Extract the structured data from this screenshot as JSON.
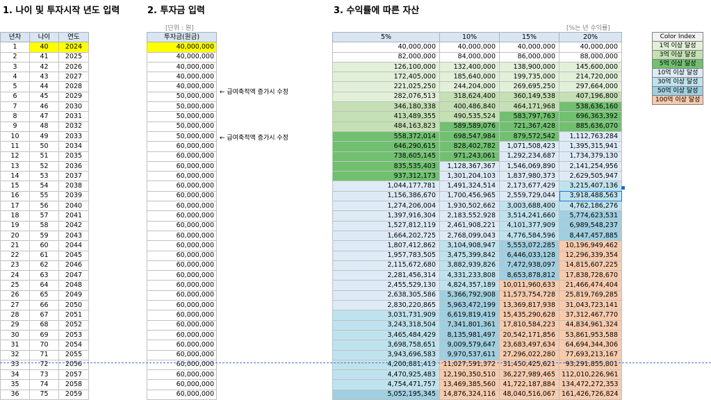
{
  "headings": {
    "section1": "1. 나이 및 투자시작 년도 입력",
    "section2": "2. 투자금 입력",
    "section3": "3. 수익률에 따른 자산"
  },
  "unit_note": "[단위 : 원]",
  "rate_note": "[%는 년 수익률]",
  "table1": {
    "headers": [
      "년차",
      "나이",
      "연도"
    ],
    "start_age": "40",
    "start_year": "2024"
  },
  "table2": {
    "header": "투자금(원금)"
  },
  "notes": [
    "← 급여축적액 증가시 수정",
    "← 급여축적액 증가시 수정"
  ],
  "table3": {
    "headers": [
      "5%",
      "10%",
      "15%",
      "20%"
    ]
  },
  "legend": {
    "title": "Color Index",
    "items": [
      "1억 이상 달성",
      "3억 이상 달성",
      "5억 이상 달성",
      "10억 이상 달성",
      "30억 이상 달성",
      "50억 이상 달성",
      "100억 이상 달성"
    ],
    "colors": [
      "#e2f0d9",
      "#c5e0b4",
      "#70c070",
      "#deebf7",
      "#bfe3ee",
      "#9fcfe0",
      "#f8cbad"
    ]
  },
  "rows": [
    [
      "1",
      "40",
      "2024",
      "40,000,000",
      "40,000,000",
      "40,000,000",
      "40,000,000",
      "40,000,000"
    ],
    [
      "2",
      "41",
      "2025",
      "40,000,000",
      "82,000,000",
      "84,000,000",
      "86,000,000",
      "88,000,000"
    ],
    [
      "3",
      "42",
      "2026",
      "40,000,000",
      "126,100,000",
      "132,400,000",
      "138,900,000",
      "145,600,000"
    ],
    [
      "4",
      "43",
      "2027",
      "40,000,000",
      "172,405,000",
      "185,640,000",
      "199,735,000",
      "214,720,000"
    ],
    [
      "5",
      "44",
      "2028",
      "40,000,000",
      "221,025,250",
      "244,204,000",
      "269,695,250",
      "297,664,000"
    ],
    [
      "6",
      "45",
      "2029",
      "50,000,000",
      "282,076,513",
      "318,624,400",
      "360,149,538",
      "407,196,800"
    ],
    [
      "7",
      "46",
      "2030",
      "50,000,000",
      "346,180,338",
      "400,486,840",
      "464,171,968",
      "538,636,160"
    ],
    [
      "8",
      "47",
      "2031",
      "50,000,000",
      "413,489,355",
      "490,535,524",
      "583,797,763",
      "696,363,392"
    ],
    [
      "9",
      "48",
      "2032",
      "50,000,000",
      "484,163,823",
      "589,589,076",
      "721,367,428",
      "885,636,070"
    ],
    [
      "10",
      "49",
      "2033",
      "50,000,000",
      "558,372,014",
      "698,547,984",
      "879,572,542",
      "1,112,763,284"
    ],
    [
      "11",
      "50",
      "2034",
      "60,000,000",
      "646,290,615",
      "828,402,782",
      "1,071,508,423",
      "1,395,315,941"
    ],
    [
      "12",
      "51",
      "2035",
      "60,000,000",
      "738,605,145",
      "971,243,061",
      "1,292,234,687",
      "1,734,379,130"
    ],
    [
      "13",
      "52",
      "2036",
      "60,000,000",
      "835,535,403",
      "1,128,367,367",
      "1,546,069,890",
      "2,141,254,956"
    ],
    [
      "14",
      "53",
      "2037",
      "60,000,000",
      "937,312,173",
      "1,301,204,103",
      "1,837,980,373",
      "2,629,505,947"
    ],
    [
      "15",
      "54",
      "2038",
      "60,000,000",
      "1,044,177,781",
      "1,491,324,514",
      "2,173,677,429",
      "3,215,407,136"
    ],
    [
      "16",
      "55",
      "2039",
      "60,000,000",
      "1,156,386,670",
      "1,700,456,965",
      "2,559,729,044",
      "3,918,488,563"
    ],
    [
      "17",
      "56",
      "2040",
      "60,000,000",
      "1,274,206,004",
      "1,930,502,662",
      "3,003,688,400",
      "4,762,186,276"
    ],
    [
      "18",
      "57",
      "2041",
      "60,000,000",
      "1,397,916,304",
      "2,183,552,928",
      "3,514,241,660",
      "5,774,623,531"
    ],
    [
      "19",
      "58",
      "2042",
      "60,000,000",
      "1,527,812,119",
      "2,461,908,221",
      "4,101,377,909",
      "6,989,548,237"
    ],
    [
      "20",
      "59",
      "2043",
      "60,000,000",
      "1,664,202,725",
      "2,768,099,043",
      "4,776,584,596",
      "8,447,457,885"
    ],
    [
      "21",
      "60",
      "2044",
      "60,000,000",
      "1,807,412,862",
      "3,104,908,947",
      "5,553,072,285",
      "10,196,949,462"
    ],
    [
      "22",
      "61",
      "2045",
      "60,000,000",
      "1,957,783,505",
      "3,475,399,842",
      "6,446,033,128",
      "12,296,339,354"
    ],
    [
      "23",
      "62",
      "2046",
      "60,000,000",
      "2,115,672,680",
      "3,882,939,826",
      "7,472,938,097",
      "14,815,607,225"
    ],
    [
      "24",
      "63",
      "2047",
      "60,000,000",
      "2,281,456,314",
      "4,331,233,808",
      "8,653,878,812",
      "17,838,728,670"
    ],
    [
      "25",
      "64",
      "2048",
      "60,000,000",
      "2,455,529,130",
      "4,824,357,189",
      "10,011,960,633",
      "21,466,474,404"
    ],
    [
      "26",
      "65",
      "2049",
      "60,000,000",
      "2,638,305,586",
      "5,366,792,908",
      "11,573,754,728",
      "25,819,769,285"
    ],
    [
      "27",
      "66",
      "2050",
      "60,000,000",
      "2,830,220,865",
      "5,963,472,199",
      "13,369,817,938",
      "31,043,723,141"
    ],
    [
      "28",
      "67",
      "2051",
      "60,000,000",
      "3,031,731,909",
      "6,619,819,419",
      "15,435,290,628",
      "37,312,467,770"
    ],
    [
      "29",
      "68",
      "2052",
      "60,000,000",
      "3,243,318,504",
      "7,341,801,361",
      "17,810,584,223",
      "44,834,961,324"
    ],
    [
      "30",
      "69",
      "2053",
      "60,000,000",
      "3,465,484,429",
      "8,135,981,497",
      "20,542,171,856",
      "53,861,953,588"
    ],
    [
      "31",
      "70",
      "2054",
      "60,000,000",
      "3,698,758,651",
      "9,009,579,647",
      "23,683,497,634",
      "64,694,344,306"
    ],
    [
      "32",
      "71",
      "2055",
      "60,000,000",
      "3,943,696,583",
      "9,970,537,611",
      "27,296,022,280",
      "77,693,213,167"
    ],
    [
      "33",
      "72",
      "2056",
      "60,000,000",
      "4,200,881,413",
      "11,027,591,372",
      "31,450,425,621",
      "93,291,855,801"
    ],
    [
      "34",
      "73",
      "2057",
      "60,000,000",
      "4,470,925,483",
      "12,190,350,510",
      "36,227,989,465",
      "112,010,226,961"
    ],
    [
      "35",
      "74",
      "2058",
      "60,000,000",
      "4,754,471,757",
      "13,469,385,560",
      "41,722,187,884",
      "134,472,272,353"
    ],
    [
      "36",
      "75",
      "2059",
      "60,000,000",
      "5,052,195,345",
      "14,876,324,116",
      "48,040,516,067",
      "161,426,726,824"
    ]
  ]
}
